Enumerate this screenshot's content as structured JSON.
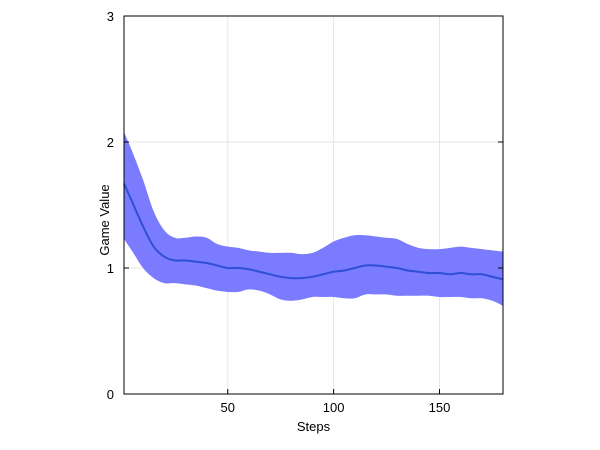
{
  "chart_data": {
    "type": "area",
    "title": "",
    "xlabel": "Steps",
    "ylabel": "Game Value",
    "xlim": [
      1,
      180
    ],
    "ylim": [
      0,
      3
    ],
    "x_ticks": [
      50,
      100,
      150
    ],
    "y_ticks": [
      0,
      1,
      2,
      3
    ],
    "grid": true,
    "colors": {
      "band": "#7b7bff",
      "line": "#2f4fd6",
      "grid": "#e6e6e6",
      "axis": "#000000"
    },
    "series": [
      {
        "x": [
          1,
          5,
          10,
          15,
          20,
          25,
          30,
          35,
          40,
          45,
          50,
          55,
          60,
          65,
          70,
          75,
          80,
          85,
          90,
          95,
          100,
          105,
          110,
          115,
          120,
          125,
          130,
          135,
          140,
          145,
          150,
          155,
          160,
          165,
          170,
          175,
          180
        ],
        "y": [
          1.67,
          1.52,
          1.33,
          1.17,
          1.09,
          1.06,
          1.06,
          1.05,
          1.04,
          1.02,
          1.0,
          1.0,
          0.99,
          0.97,
          0.95,
          0.93,
          0.92,
          0.92,
          0.93,
          0.95,
          0.97,
          0.98,
          1.0,
          1.02,
          1.02,
          1.01,
          1.0,
          0.98,
          0.97,
          0.96,
          0.96,
          0.95,
          0.96,
          0.95,
          0.95,
          0.93,
          0.91
        ],
        "lower": [
          1.23,
          1.13,
          1.0,
          0.92,
          0.88,
          0.88,
          0.87,
          0.86,
          0.84,
          0.82,
          0.81,
          0.81,
          0.83,
          0.82,
          0.79,
          0.75,
          0.74,
          0.75,
          0.77,
          0.77,
          0.77,
          0.76,
          0.76,
          0.79,
          0.79,
          0.79,
          0.78,
          0.78,
          0.78,
          0.78,
          0.77,
          0.77,
          0.77,
          0.76,
          0.76,
          0.74,
          0.7
        ],
        "upper": [
          2.08,
          1.92,
          1.7,
          1.45,
          1.3,
          1.24,
          1.24,
          1.25,
          1.24,
          1.19,
          1.17,
          1.16,
          1.14,
          1.13,
          1.12,
          1.12,
          1.12,
          1.11,
          1.12,
          1.16,
          1.21,
          1.24,
          1.26,
          1.26,
          1.25,
          1.24,
          1.23,
          1.19,
          1.16,
          1.15,
          1.15,
          1.16,
          1.17,
          1.16,
          1.15,
          1.14,
          1.13
        ]
      }
    ]
  }
}
